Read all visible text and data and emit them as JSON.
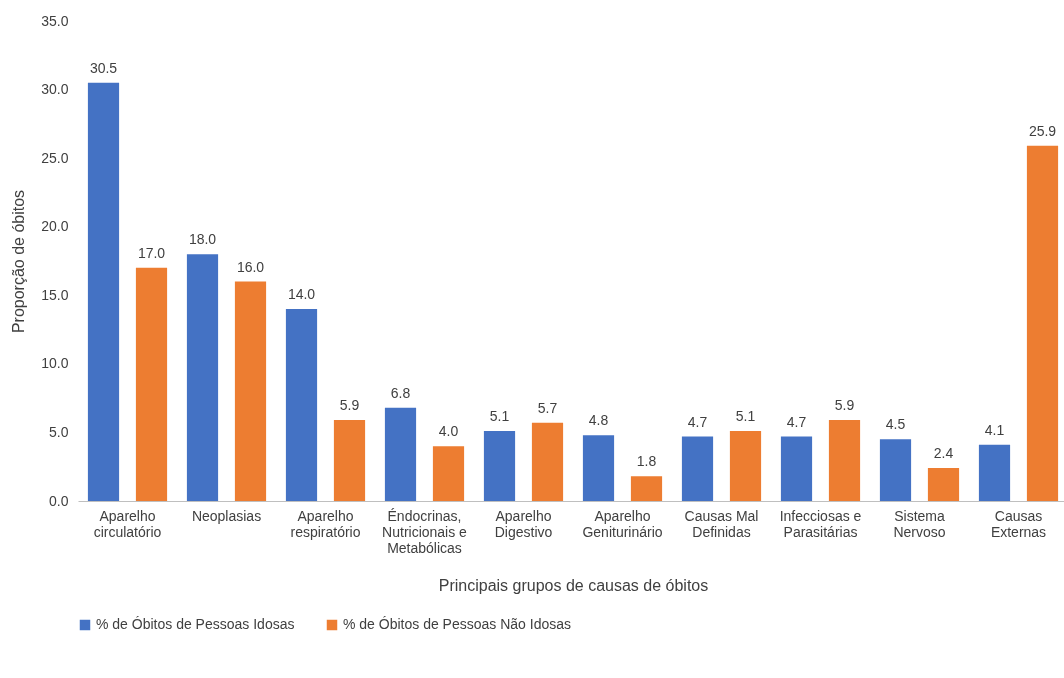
{
  "chart_data": {
    "type": "bar",
    "categories": [
      "Aparelho circulatório",
      "Neoplasias",
      "Aparelho respiratório",
      "Éndocrinas, Nutricionais e Metabólicas",
      "Aparelho Digestivo",
      "Aparelho Geniturinário",
      "Causas Mal Definidas",
      "Infecciosas e Parasitárias",
      "Sistema Nervoso",
      "Causas Externas"
    ],
    "series": [
      {
        "name": "% de Óbitos de Pessoas Idosas",
        "color": "#4472c4",
        "values": [
          30.5,
          18.0,
          14.0,
          6.8,
          5.1,
          4.8,
          4.7,
          4.7,
          4.5,
          4.1
        ],
        "value_labels": [
          "30.5",
          "18.0",
          "14.0",
          "6.8",
          "5.1",
          "4.8",
          "4.7",
          "4.7",
          "4.5",
          "4.1"
        ]
      },
      {
        "name": "% de Óbitos de Pessoas Não Idosas",
        "color": "#ed7d31",
        "values": [
          17.0,
          16.0,
          5.9,
          4.0,
          5.7,
          1.8,
          5.1,
          5.9,
          2.4,
          25.9
        ],
        "value_labels": [
          "17.0",
          "16.0",
          "5.9",
          "4.0",
          "5.7",
          "1.8",
          "5.1",
          "5.9",
          "2.4",
          "25.9"
        ]
      }
    ],
    "xlabel": "Principais grupos de causas de óbitos",
    "ylabel": "Proporção de óbitos",
    "ylim": [
      0,
      35
    ],
    "yticks": [
      {
        "value": 0,
        "label": "0.0"
      },
      {
        "value": 5,
        "label": "5.0"
      },
      {
        "value": 10,
        "label": "10.0"
      },
      {
        "value": 15,
        "label": "15.0"
      },
      {
        "value": 20,
        "label": "20.0"
      },
      {
        "value": 25,
        "label": "25.0"
      },
      {
        "value": 30,
        "label": "30.0"
      },
      {
        "value": 35,
        "label": "35.0"
      }
    ],
    "grid": false,
    "legend": "bottom"
  }
}
